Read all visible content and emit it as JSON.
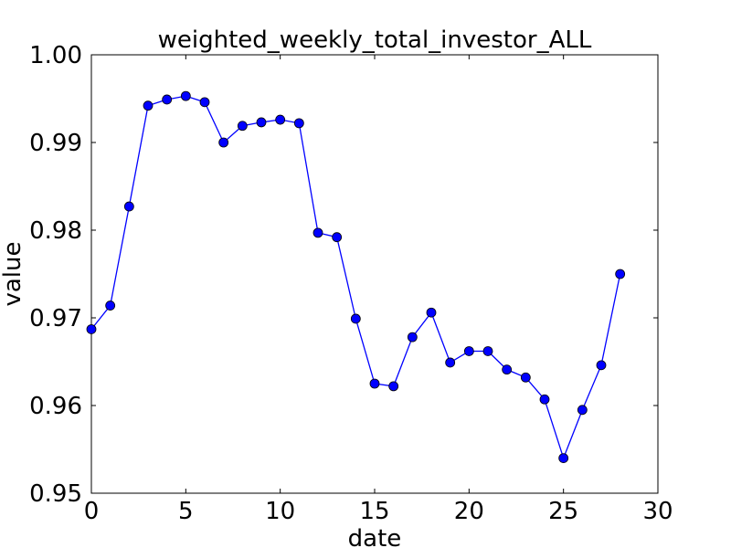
{
  "chart_data": {
    "type": "line",
    "title": "weighted_weekly_total_investor_ALL",
    "xlabel": "date",
    "ylabel": "value",
    "xlim": [
      0,
      30
    ],
    "ylim": [
      0.95,
      1.0
    ],
    "x_ticks": [
      0,
      5,
      10,
      15,
      20,
      25,
      30
    ],
    "y_ticks": [
      0.95,
      0.96,
      0.97,
      0.98,
      0.99,
      1.0
    ],
    "x_tick_labels": [
      "0",
      "5",
      "10",
      "15",
      "20",
      "25",
      "30"
    ],
    "y_tick_labels": [
      "0.95",
      "0.96",
      "0.97",
      "0.98",
      "0.99",
      "1.00"
    ],
    "grid": false,
    "series": [
      {
        "color": "#0000ff",
        "marker": "circle",
        "x": [
          0,
          1,
          2,
          3,
          4,
          5,
          6,
          7,
          8,
          9,
          10,
          11,
          12,
          13,
          14,
          15,
          16,
          17,
          18,
          19,
          20,
          21,
          22,
          23,
          24,
          25,
          26,
          27,
          28
        ],
        "y": [
          0.9687,
          0.9714,
          0.9827,
          0.9942,
          0.9949,
          0.9953,
          0.9946,
          0.99,
          0.9919,
          0.9923,
          0.9926,
          0.9922,
          0.9797,
          0.9792,
          0.9699,
          0.9625,
          0.9622,
          0.9678,
          0.9706,
          0.9649,
          0.9662,
          0.9662,
          0.9641,
          0.9632,
          0.9607,
          0.954,
          0.9595,
          0.9646,
          0.975
        ]
      }
    ]
  }
}
